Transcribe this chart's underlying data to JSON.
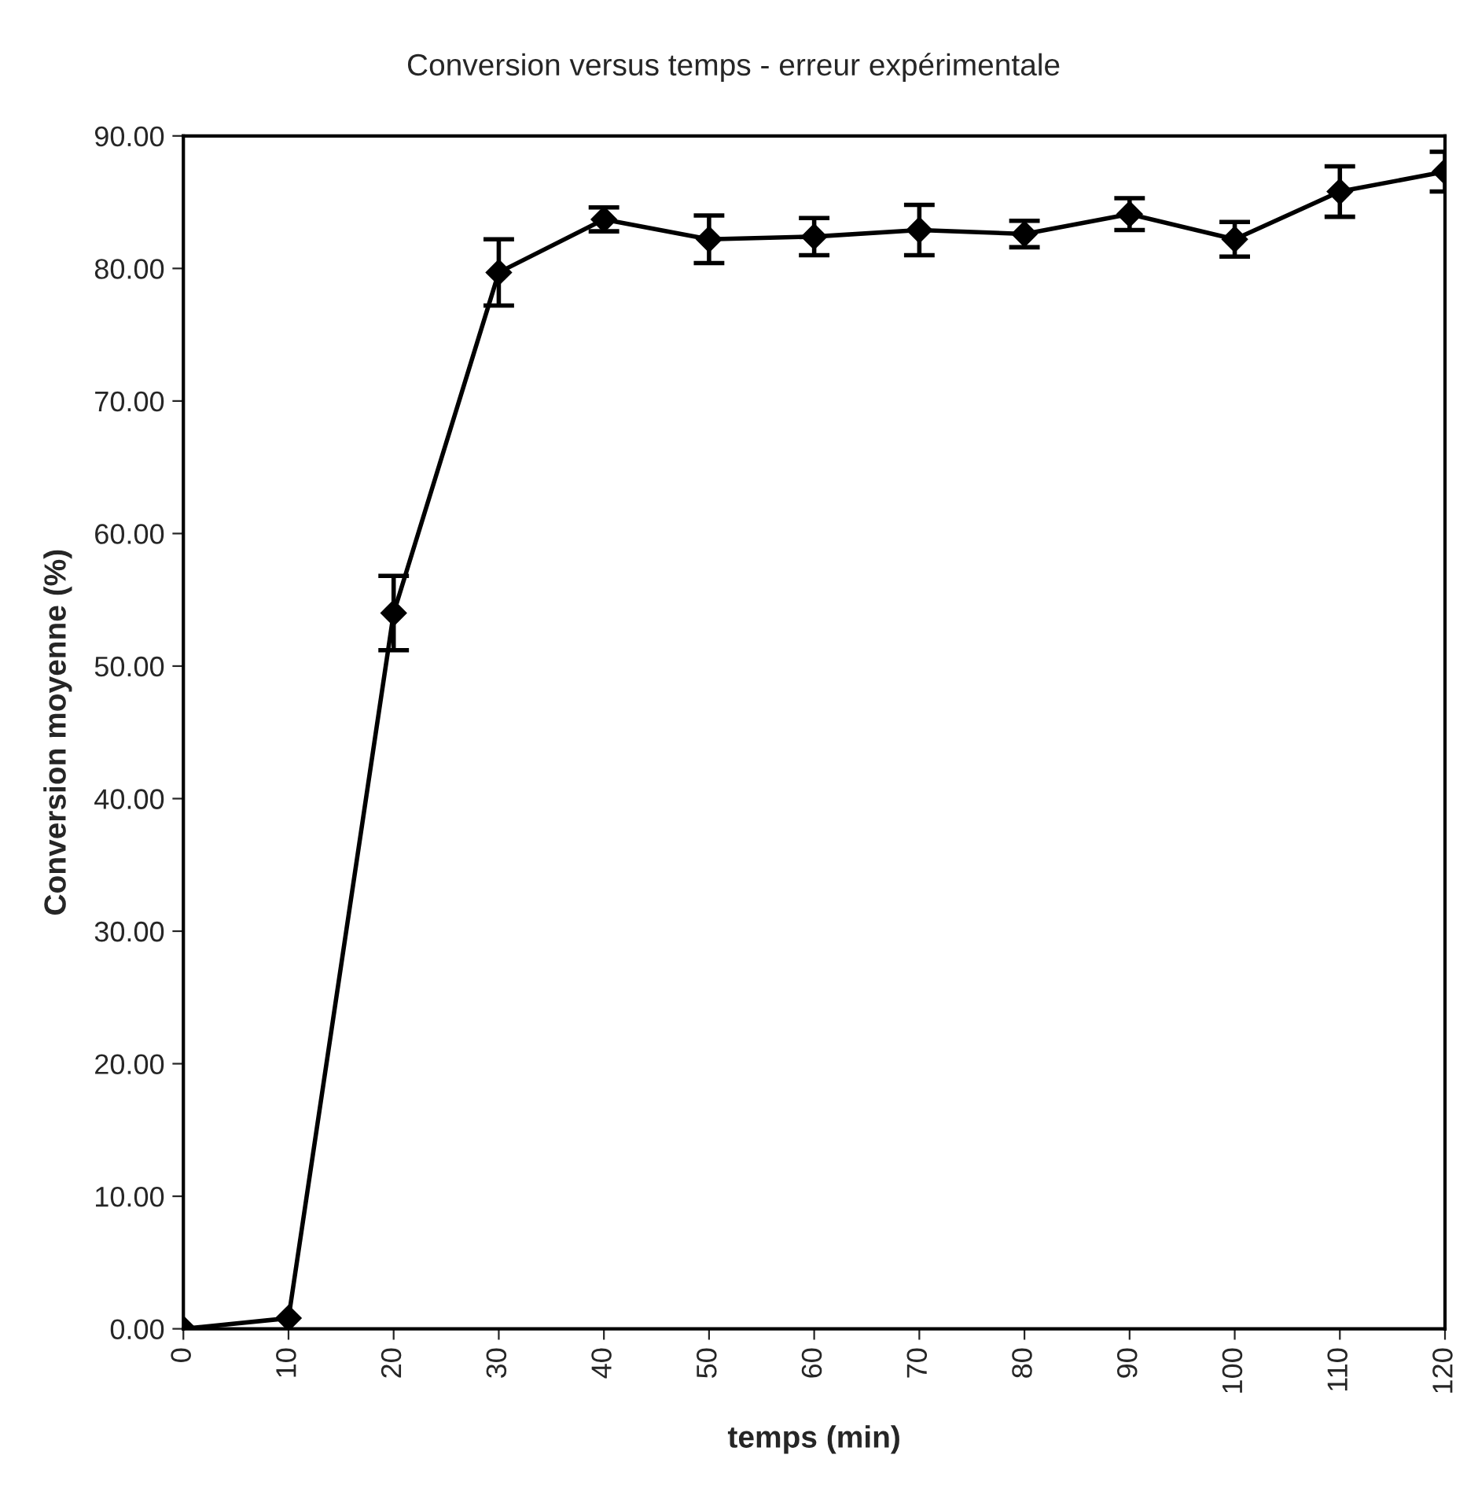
{
  "chart_data": {
    "type": "line",
    "title": "Conversion versus temps - erreur expérimentale",
    "xlabel": "temps (min)",
    "ylabel": "Conversion moyenne (%)",
    "x": [
      0,
      10,
      20,
      30,
      40,
      50,
      60,
      70,
      80,
      90,
      100,
      110,
      120
    ],
    "series": [
      {
        "color": "#000000",
        "values": [
          0.0,
          0.8,
          54.0,
          79.7,
          83.7,
          82.2,
          82.4,
          82.9,
          82.6,
          84.1,
          82.2,
          85.8,
          87.3
        ],
        "errors": [
          null,
          null,
          2.8,
          2.5,
          0.9,
          1.8,
          1.4,
          1.9,
          1.0,
          1.2,
          1.3,
          1.9,
          1.5
        ]
      }
    ],
    "xlim": [
      0,
      120
    ],
    "xticks": [
      0,
      10,
      20,
      30,
      40,
      50,
      60,
      70,
      80,
      90,
      100,
      110,
      120
    ],
    "ylim": [
      0,
      90
    ],
    "yticks": [
      {
        "value": 0,
        "label": "0.00"
      },
      {
        "value": 10,
        "label": "10.00"
      },
      {
        "value": 20,
        "label": "20.00"
      },
      {
        "value": 30,
        "label": "30.00"
      },
      {
        "value": 40,
        "label": "40.00"
      },
      {
        "value": 50,
        "label": "50.00"
      },
      {
        "value": 60,
        "label": "60.00"
      },
      {
        "value": 70,
        "label": "70.00"
      },
      {
        "value": 80,
        "label": "80.00"
      },
      {
        "value": 90,
        "label": "90.00"
      }
    ],
    "marker": "diamond",
    "line_style": "solid",
    "grid": false,
    "legend": false
  }
}
